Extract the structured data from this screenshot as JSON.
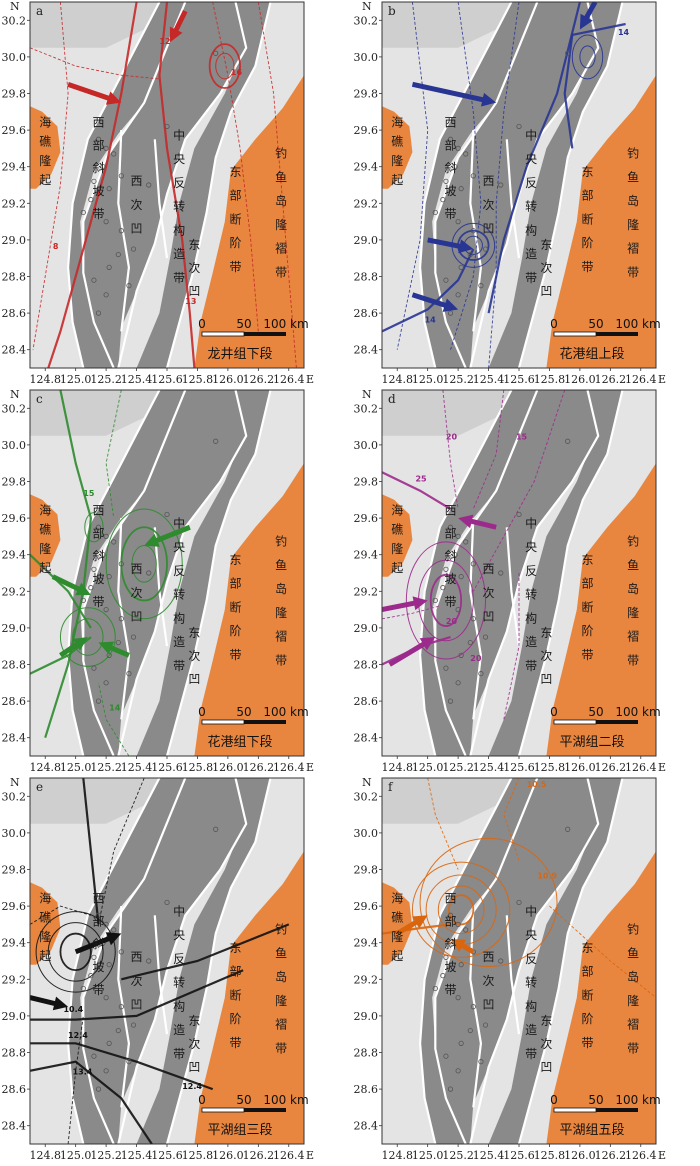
{
  "axes": {
    "y_symbol": "N",
    "x_symbol": "E",
    "y_ticks": [
      "30.2",
      "30.0",
      "29.8",
      "29.6",
      "29.4",
      "29.2",
      "29.0",
      "28.8",
      "28.6",
      "28.4"
    ],
    "x_ticks": [
      "124.8",
      "125.0",
      "125.2",
      "125.4",
      "125.6",
      "125.8",
      "126.0",
      "126.2",
      "126.4"
    ],
    "lat_range": [
      28.3,
      30.3
    ],
    "lon_range": [
      124.7,
      126.5
    ]
  },
  "structural_units": {
    "haijiao": [
      "海",
      "礁",
      "隆",
      "起"
    ],
    "xibu": [
      "西",
      "部",
      "斜",
      "坡",
      "带"
    ],
    "zhongyang": [
      "中",
      "央",
      "反",
      "转",
      "构",
      "造",
      "带"
    ],
    "xici": [
      "西",
      "次",
      "凹"
    ],
    "dongci": [
      "东",
      "次",
      "凹"
    ],
    "dongbu": [
      "东",
      "部",
      "断",
      "阶",
      "带"
    ],
    "diaoyudao": [
      "钓",
      "鱼",
      "岛",
      "隆",
      "褶",
      "带"
    ]
  },
  "scale_bar": {
    "zero": "0",
    "mid": "50",
    "end": "100 km"
  },
  "panels": [
    {
      "letter": "a",
      "formation": "龙井组下段",
      "color": "#c62828",
      "contour_labels": [
        {
          "text": "12",
          "lon": 125.55,
          "lat": 30.07
        },
        {
          "text": "16",
          "lon": 126.02,
          "lat": 29.9
        },
        {
          "text": "8",
          "lon": 124.85,
          "lat": 28.95
        },
        {
          "text": "13",
          "lon": 125.72,
          "lat": 28.65
        }
      ]
    },
    {
      "letter": "b",
      "formation": "花港组上段",
      "color": "#283593",
      "contour_labels": [
        {
          "text": "14",
          "lon": 126.25,
          "lat": 30.12
        },
        {
          "text": "14",
          "lon": 124.98,
          "lat": 28.55
        }
      ]
    },
    {
      "letter": "c",
      "formation": "花港组下段",
      "color": "#2e8b2e",
      "contour_labels": [
        {
          "text": "15",
          "lon": 125.05,
          "lat": 29.72
        },
        {
          "text": "14",
          "lon": 125.22,
          "lat": 28.55
        }
      ]
    },
    {
      "letter": "d",
      "formation": "平湖组二段",
      "color": "#9c2a8c",
      "contour_labels": [
        {
          "text": "20",
          "lon": 125.12,
          "lat": 30.03
        },
        {
          "text": "15",
          "lon": 125.58,
          "lat": 30.03
        },
        {
          "text": "25",
          "lon": 124.92,
          "lat": 29.8
        },
        {
          "text": "20",
          "lon": 125.12,
          "lat": 29.02
        },
        {
          "text": "20",
          "lon": 125.28,
          "lat": 28.82
        }
      ]
    },
    {
      "letter": "e",
      "formation": "平湖组三段",
      "color": "#111111",
      "contour_labels": [
        {
          "text": "10.4",
          "lon": 124.92,
          "lat": 29.02
        },
        {
          "text": "12.4",
          "lon": 124.95,
          "lat": 28.88
        },
        {
          "text": "13.4",
          "lon": 124.98,
          "lat": 28.68
        },
        {
          "text": "12.4",
          "lon": 125.7,
          "lat": 28.6
        }
      ]
    },
    {
      "letter": "f",
      "formation": "平湖组五段",
      "color": "#d9660f",
      "contour_labels": [
        {
          "text": "10.5",
          "lon": 125.65,
          "lat": 30.25
        },
        {
          "text": "10.9",
          "lon": 125.72,
          "lat": 29.75
        }
      ]
    }
  ],
  "colors": {
    "background_light": "#e4e4e4",
    "background_top": "#cfcfcf",
    "depression": "#8a8a8a",
    "uplift": "#e8863f",
    "boundary": "#ffffff"
  }
}
